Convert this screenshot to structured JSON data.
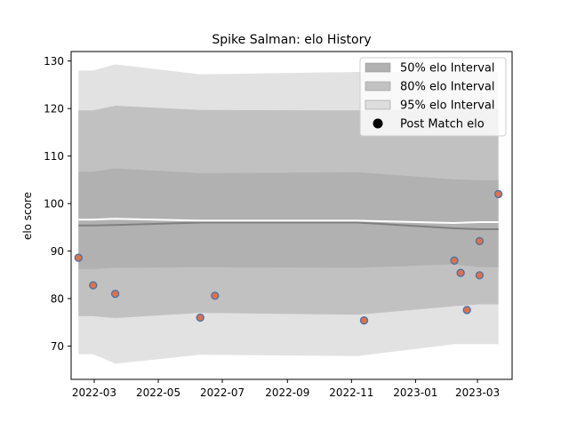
{
  "chart_data": {
    "type": "scatter",
    "title": "Spike Salman: elo History",
    "xlabel": "",
    "ylabel": "elo score",
    "x_axis": {
      "type": "date",
      "range": [
        "2022-02-07",
        "2023-04-03"
      ],
      "ticks": [
        "2022-03-01",
        "2022-05-01",
        "2022-07-01",
        "2022-09-01",
        "2022-11-01",
        "2023-01-01",
        "2023-03-01"
      ],
      "tick_labels": [
        "2022-03",
        "2022-05",
        "2022-07",
        "2022-09",
        "2022-11",
        "2023-01",
        "2023-03"
      ]
    },
    "ylim": [
      63,
      132
    ],
    "yticks": [
      70,
      80,
      90,
      100,
      110,
      120,
      130
    ],
    "grid": false,
    "legend": {
      "placement": "top-right",
      "entries": [
        "50% elo Interval",
        "80% elo Interval",
        "95% elo Interval",
        "Post Match elo"
      ]
    },
    "bands": {
      "x": [
        "2022-02-14",
        "2022-02-28",
        "2022-03-21",
        "2022-06-10",
        "2022-11-07",
        "2023-02-07",
        "2023-03-03",
        "2023-03-21"
      ],
      "mean_upper": [
        96.6,
        96.6,
        96.8,
        96.4,
        96.4,
        95.9,
        96.1,
        96.1
      ],
      "mean_lower": [
        95.4,
        95.4,
        95.5,
        96.0,
        96.0,
        94.8,
        94.6,
        94.6
      ],
      "p50_upper": [
        106.7,
        106.7,
        107.4,
        106.4,
        106.6,
        105.1,
        104.9,
        104.9
      ],
      "p50_lower": [
        86.2,
        86.2,
        86.5,
        86.6,
        86.5,
        87.2,
        86.6,
        86.6
      ],
      "p80_upper": [
        119.6,
        119.6,
        120.6,
        119.7,
        119.6,
        119.8,
        119.8,
        119.8
      ],
      "p80_lower": [
        76.3,
        76.3,
        75.9,
        77.0,
        76.6,
        78.4,
        78.8,
        78.8
      ],
      "p95_upper": [
        128.0,
        128.0,
        129.3,
        127.2,
        127.7,
        127.8,
        127.8,
        127.8
      ],
      "p95_lower": [
        68.3,
        68.3,
        66.3,
        68.2,
        67.9,
        70.4,
        70.4,
        70.4
      ],
      "colors": {
        "p50": "#9e9e9e",
        "p80": "#b4b4b4",
        "p95": "#d6d6d6",
        "mean_line": "#ffffff",
        "lower_line": "#7f7f7f"
      }
    },
    "series": [
      {
        "name": "Post Match elo",
        "marker_face": "#d9734e",
        "marker_edge": "#4a6fa5",
        "points": [
          {
            "x": "2022-02-14",
            "y": 88.6
          },
          {
            "x": "2022-02-28",
            "y": 82.8
          },
          {
            "x": "2022-03-21",
            "y": 81.0
          },
          {
            "x": "2022-06-10",
            "y": 76.0
          },
          {
            "x": "2022-06-24",
            "y": 80.6
          },
          {
            "x": "2022-11-13",
            "y": 75.4
          },
          {
            "x": "2023-02-07",
            "y": 88.0
          },
          {
            "x": "2023-02-13",
            "y": 85.4
          },
          {
            "x": "2023-02-19",
            "y": 77.6
          },
          {
            "x": "2023-03-03",
            "y": 92.1
          },
          {
            "x": "2023-03-03",
            "y": 84.9
          },
          {
            "x": "2023-03-21",
            "y": 102.0
          }
        ]
      }
    ]
  }
}
